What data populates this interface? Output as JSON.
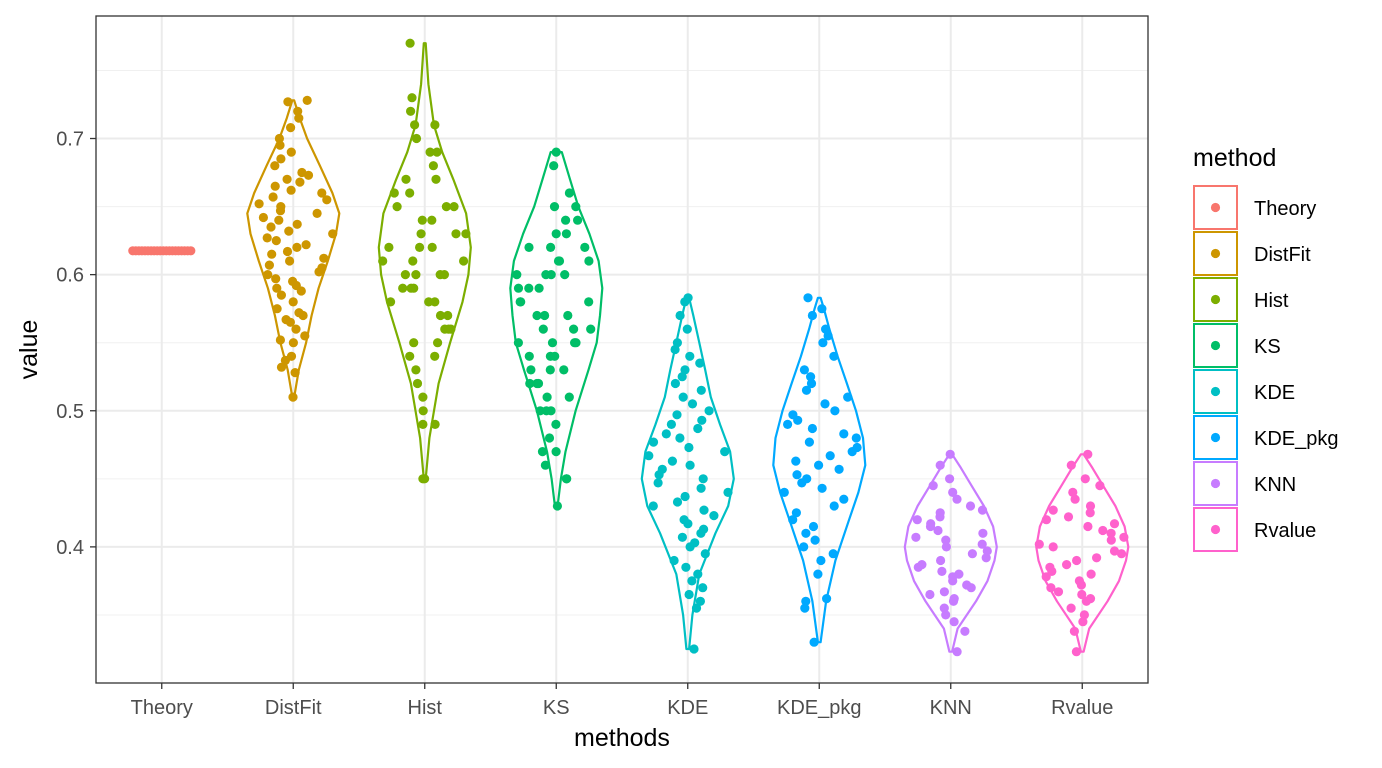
{
  "chart_data": {
    "type": "violin",
    "xlabel": "methods",
    "ylabel": "value",
    "categories": [
      "Theory",
      "DistFit",
      "Hist",
      "KS",
      "KDE",
      "KDE_pkg",
      "KNN",
      "Rvalue"
    ],
    "y_ticks": [
      0.4,
      0.5,
      0.6,
      0.7
    ],
    "y_tick_labels": [
      "0.4",
      "0.5",
      "0.6",
      "0.7"
    ],
    "ylim": [
      0.3,
      0.79
    ],
    "grid": true,
    "legend": {
      "title": "method",
      "position": "right",
      "entries": [
        "Theory",
        "DistFit",
        "Hist",
        "KS",
        "KDE",
        "KDE_pkg",
        "KNN",
        "Rvalue"
      ]
    },
    "colors": {
      "Theory": "#F8766D",
      "DistFit": "#CD9600",
      "Hist": "#7CAE00",
      "KS": "#00BE67",
      "KDE": "#00BFC4",
      "KDE_pkg": "#00A9FF",
      "KNN": "#C77CFF",
      "Rvalue": "#FF61CC"
    },
    "series": [
      {
        "name": "Theory",
        "points": [
          0.6175,
          0.6175,
          0.6175,
          0.6175,
          0.6175,
          0.6175,
          0.6175,
          0.6175,
          0.6175,
          0.6175,
          0.6175,
          0.6175,
          0.6175,
          0.6175,
          0.6175,
          0.6175,
          0.6175,
          0.6175,
          0.6175,
          0.6175
        ],
        "density": [
          [
            0.616,
            0.2
          ],
          [
            0.6175,
            1
          ],
          [
            0.619,
            0.2
          ]
        ]
      },
      {
        "name": "DistFit",
        "points": [
          0.51,
          0.528,
          0.532,
          0.537,
          0.54,
          0.55,
          0.552,
          0.555,
          0.56,
          0.565,
          0.567,
          0.57,
          0.572,
          0.575,
          0.58,
          0.585,
          0.588,
          0.59,
          0.592,
          0.595,
          0.597,
          0.6,
          0.602,
          0.605,
          0.607,
          0.61,
          0.612,
          0.615,
          0.617,
          0.62,
          0.622,
          0.625,
          0.627,
          0.63,
          0.632,
          0.635,
          0.637,
          0.64,
          0.642,
          0.645,
          0.647,
          0.65,
          0.652,
          0.655,
          0.657,
          0.66,
          0.662,
          0.665,
          0.668,
          0.67,
          0.673,
          0.675,
          0.68,
          0.685,
          0.69,
          0.695,
          0.7,
          0.708,
          0.715,
          0.72,
          0.728,
          0.727
        ],
        "density": [
          [
            0.51,
            0.02
          ],
          [
            0.53,
            0.12
          ],
          [
            0.55,
            0.28
          ],
          [
            0.57,
            0.4
          ],
          [
            0.59,
            0.55
          ],
          [
            0.61,
            0.75
          ],
          [
            0.63,
            0.93
          ],
          [
            0.645,
            1.0
          ],
          [
            0.66,
            0.85
          ],
          [
            0.68,
            0.58
          ],
          [
            0.7,
            0.3
          ],
          [
            0.715,
            0.14
          ],
          [
            0.728,
            0.02
          ]
        ]
      },
      {
        "name": "Hist",
        "points": [
          0.45,
          0.45,
          0.49,
          0.49,
          0.5,
          0.51,
          0.52,
          0.53,
          0.54,
          0.54,
          0.55,
          0.55,
          0.56,
          0.56,
          0.56,
          0.57,
          0.57,
          0.58,
          0.58,
          0.58,
          0.59,
          0.59,
          0.59,
          0.6,
          0.6,
          0.6,
          0.6,
          0.61,
          0.61,
          0.61,
          0.62,
          0.62,
          0.62,
          0.63,
          0.63,
          0.63,
          0.64,
          0.64,
          0.65,
          0.65,
          0.65,
          0.66,
          0.66,
          0.67,
          0.67,
          0.68,
          0.69,
          0.69,
          0.7,
          0.71,
          0.71,
          0.72,
          0.73,
          0.77
        ],
        "density": [
          [
            0.45,
            0.02
          ],
          [
            0.48,
            0.1
          ],
          [
            0.52,
            0.3
          ],
          [
            0.55,
            0.55
          ],
          [
            0.58,
            0.82
          ],
          [
            0.6,
            0.95
          ],
          [
            0.62,
            1.0
          ],
          [
            0.645,
            0.9
          ],
          [
            0.67,
            0.62
          ],
          [
            0.69,
            0.38
          ],
          [
            0.71,
            0.2
          ],
          [
            0.74,
            0.08
          ],
          [
            0.77,
            0.02
          ]
        ]
      },
      {
        "name": "KS",
        "points": [
          0.43,
          0.45,
          0.45,
          0.46,
          0.47,
          0.47,
          0.48,
          0.49,
          0.5,
          0.5,
          0.5,
          0.51,
          0.51,
          0.52,
          0.52,
          0.52,
          0.53,
          0.53,
          0.53,
          0.54,
          0.54,
          0.54,
          0.55,
          0.55,
          0.55,
          0.55,
          0.56,
          0.56,
          0.56,
          0.57,
          0.57,
          0.57,
          0.58,
          0.58,
          0.58,
          0.59,
          0.59,
          0.59,
          0.6,
          0.6,
          0.6,
          0.6,
          0.61,
          0.61,
          0.61,
          0.62,
          0.62,
          0.62,
          0.63,
          0.63,
          0.64,
          0.64,
          0.65,
          0.65,
          0.66,
          0.68,
          0.69
        ],
        "density": [
          [
            0.43,
            0.03
          ],
          [
            0.45,
            0.1
          ],
          [
            0.47,
            0.2
          ],
          [
            0.5,
            0.42
          ],
          [
            0.53,
            0.7
          ],
          [
            0.55,
            0.88
          ],
          [
            0.57,
            0.95
          ],
          [
            0.59,
            1.0
          ],
          [
            0.61,
            0.92
          ],
          [
            0.63,
            0.72
          ],
          [
            0.65,
            0.48
          ],
          [
            0.67,
            0.3
          ],
          [
            0.69,
            0.12
          ]
        ]
      },
      {
        "name": "KDE",
        "points": [
          0.325,
          0.355,
          0.36,
          0.365,
          0.37,
          0.375,
          0.38,
          0.385,
          0.39,
          0.395,
          0.4,
          0.403,
          0.407,
          0.41,
          0.413,
          0.417,
          0.42,
          0.423,
          0.427,
          0.43,
          0.433,
          0.437,
          0.44,
          0.443,
          0.447,
          0.45,
          0.453,
          0.457,
          0.46,
          0.463,
          0.467,
          0.47,
          0.473,
          0.477,
          0.48,
          0.483,
          0.487,
          0.49,
          0.493,
          0.497,
          0.5,
          0.505,
          0.51,
          0.515,
          0.52,
          0.525,
          0.53,
          0.535,
          0.54,
          0.545,
          0.55,
          0.56,
          0.57,
          0.58,
          0.583
        ],
        "density": [
          [
            0.325,
            0.03
          ],
          [
            0.35,
            0.1
          ],
          [
            0.38,
            0.25
          ],
          [
            0.41,
            0.6
          ],
          [
            0.43,
            0.88
          ],
          [
            0.45,
            1.0
          ],
          [
            0.47,
            0.92
          ],
          [
            0.49,
            0.7
          ],
          [
            0.51,
            0.5
          ],
          [
            0.53,
            0.38
          ],
          [
            0.55,
            0.25
          ],
          [
            0.57,
            0.12
          ],
          [
            0.583,
            0.03
          ]
        ]
      },
      {
        "name": "KDE_pkg",
        "points": [
          0.33,
          0.355,
          0.36,
          0.362,
          0.38,
          0.39,
          0.395,
          0.4,
          0.405,
          0.41,
          0.415,
          0.42,
          0.425,
          0.43,
          0.435,
          0.44,
          0.443,
          0.447,
          0.45,
          0.453,
          0.457,
          0.46,
          0.463,
          0.467,
          0.47,
          0.473,
          0.477,
          0.48,
          0.483,
          0.487,
          0.49,
          0.493,
          0.497,
          0.5,
          0.505,
          0.51,
          0.515,
          0.52,
          0.525,
          0.53,
          0.54,
          0.55,
          0.555,
          0.56,
          0.57,
          0.575,
          0.583
        ],
        "density": [
          [
            0.33,
            0.03
          ],
          [
            0.36,
            0.15
          ],
          [
            0.39,
            0.35
          ],
          [
            0.42,
            0.65
          ],
          [
            0.44,
            0.85
          ],
          [
            0.46,
            1.0
          ],
          [
            0.48,
            0.95
          ],
          [
            0.5,
            0.8
          ],
          [
            0.52,
            0.6
          ],
          [
            0.54,
            0.4
          ],
          [
            0.56,
            0.22
          ],
          [
            0.575,
            0.1
          ],
          [
            0.583,
            0.03
          ]
        ]
      },
      {
        "name": "KNN",
        "points": [
          0.323,
          0.338,
          0.345,
          0.35,
          0.355,
          0.36,
          0.362,
          0.365,
          0.367,
          0.37,
          0.372,
          0.375,
          0.378,
          0.38,
          0.382,
          0.385,
          0.387,
          0.39,
          0.392,
          0.395,
          0.397,
          0.4,
          0.402,
          0.405,
          0.407,
          0.41,
          0.412,
          0.415,
          0.417,
          0.42,
          0.422,
          0.425,
          0.427,
          0.43,
          0.435,
          0.44,
          0.445,
          0.45,
          0.46,
          0.468
        ],
        "density": [
          [
            0.323,
            0.03
          ],
          [
            0.34,
            0.15
          ],
          [
            0.36,
            0.55
          ],
          [
            0.375,
            0.8
          ],
          [
            0.39,
            0.95
          ],
          [
            0.4,
            1.0
          ],
          [
            0.415,
            0.92
          ],
          [
            0.43,
            0.72
          ],
          [
            0.445,
            0.45
          ],
          [
            0.458,
            0.22
          ],
          [
            0.468,
            0.03
          ]
        ]
      },
      {
        "name": "Rvalue",
        "points": [
          0.323,
          0.338,
          0.345,
          0.35,
          0.355,
          0.36,
          0.362,
          0.365,
          0.367,
          0.37,
          0.372,
          0.375,
          0.378,
          0.38,
          0.382,
          0.385,
          0.387,
          0.39,
          0.392,
          0.395,
          0.397,
          0.4,
          0.402,
          0.405,
          0.407,
          0.41,
          0.412,
          0.415,
          0.417,
          0.42,
          0.422,
          0.425,
          0.427,
          0.43,
          0.435,
          0.44,
          0.445,
          0.45,
          0.46,
          0.468
        ],
        "density": [
          [
            0.323,
            0.03
          ],
          [
            0.34,
            0.15
          ],
          [
            0.36,
            0.55
          ],
          [
            0.375,
            0.8
          ],
          [
            0.39,
            0.95
          ],
          [
            0.4,
            1.0
          ],
          [
            0.415,
            0.92
          ],
          [
            0.43,
            0.72
          ],
          [
            0.445,
            0.45
          ],
          [
            0.458,
            0.22
          ],
          [
            0.468,
            0.03
          ]
        ]
      }
    ]
  }
}
